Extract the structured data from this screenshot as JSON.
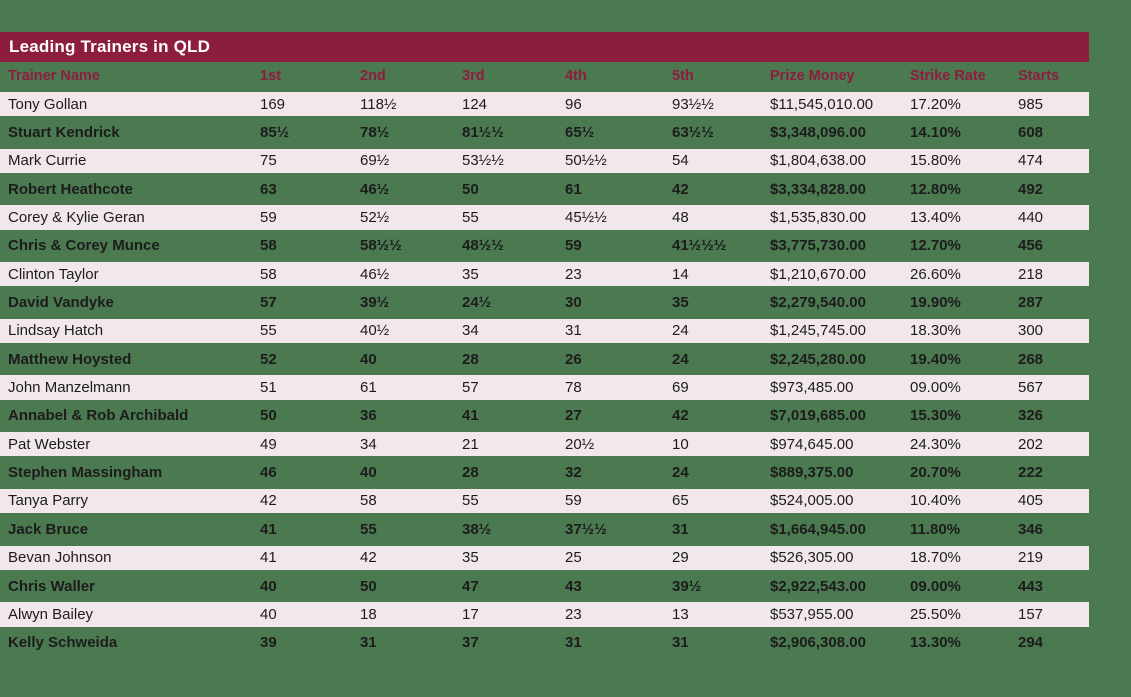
{
  "title": "Leading Trainers in QLD",
  "colors": {
    "background_green": "#4b7950",
    "title_bar_maroon": "#8d1d3f",
    "row_pink": "#f2e7ea",
    "header_text": "#8d1d3f",
    "row_text_dark": "#1c1c1c",
    "title_text": "#ffffff"
  },
  "chart_data": {
    "type": "table",
    "title": "Leading Trainers in QLD",
    "columns": [
      "Trainer Name",
      "1st",
      "2nd",
      "3rd",
      "4th",
      "5th",
      "Prize Money",
      "Strike Rate",
      "Starts"
    ],
    "column_keys": [
      "trainer-name",
      "first",
      "second",
      "third",
      "fourth",
      "fifth",
      "prize-money",
      "strike-rate",
      "starts"
    ],
    "rows": [
      [
        "Tony Gollan",
        "169",
        "118½",
        "124",
        "96",
        "93½½",
        "$11,545,010.00",
        "17.20%",
        "985"
      ],
      [
        "Stuart Kendrick",
        "85½",
        "78½",
        "81½½",
        "65½",
        "63½½",
        "$3,348,096.00",
        "14.10%",
        "608"
      ],
      [
        "Mark Currie",
        "75",
        "69½",
        "53½½",
        "50½½",
        "54",
        "$1,804,638.00",
        "15.80%",
        "474"
      ],
      [
        "Robert Heathcote",
        "63",
        "46½",
        "50",
        "61",
        "42",
        "$3,334,828.00",
        "12.80%",
        "492"
      ],
      [
        "Corey & Kylie Geran",
        "59",
        "52½",
        "55",
        "45½½",
        "48",
        "$1,535,830.00",
        "13.40%",
        "440"
      ],
      [
        "Chris & Corey Munce",
        "58",
        "58½½",
        "48½½",
        "59",
        "41½½½",
        "$3,775,730.00",
        "12.70%",
        "456"
      ],
      [
        "Clinton Taylor",
        "58",
        "46½",
        "35",
        "23",
        "14",
        "$1,210,670.00",
        "26.60%",
        "218"
      ],
      [
        "David Vandyke",
        "57",
        "39½",
        "24½",
        "30",
        "35",
        "$2,279,540.00",
        "19.90%",
        "287"
      ],
      [
        "Lindsay Hatch",
        "55",
        "40½",
        "34",
        "31",
        "24",
        "$1,245,745.00",
        "18.30%",
        "300"
      ],
      [
        "Matthew Hoysted",
        "52",
        "40",
        "28",
        "26",
        "24",
        "$2,245,280.00",
        "19.40%",
        "268"
      ],
      [
        "John Manzelmann",
        "51",
        "61",
        "57",
        "78",
        "69",
        "$973,485.00",
        "09.00%",
        "567"
      ],
      [
        "Annabel & Rob Archibald",
        "50",
        "36",
        "41",
        "27",
        "42",
        "$7,019,685.00",
        "15.30%",
        "326"
      ],
      [
        "Pat Webster",
        "49",
        "34",
        "21",
        "20½",
        "10",
        "$974,645.00",
        "24.30%",
        "202"
      ],
      [
        "Stephen Massingham",
        "46",
        "40",
        "28",
        "32",
        "24",
        "$889,375.00",
        "20.70%",
        "222"
      ],
      [
        "Tanya Parry",
        "42",
        "58",
        "55",
        "59",
        "65",
        "$524,005.00",
        "10.40%",
        "405"
      ],
      [
        "Jack Bruce",
        "41",
        "55",
        "38½",
        "37½½",
        "31",
        "$1,664,945.00",
        "11.80%",
        "346"
      ],
      [
        "Bevan Johnson",
        "41",
        "42",
        "35",
        "25",
        "29",
        "$526,305.00",
        "18.70%",
        "219"
      ],
      [
        "Chris Waller",
        "40",
        "50",
        "47",
        "43",
        "39½",
        "$2,922,543.00",
        "09.00%",
        "443"
      ],
      [
        "Alwyn Bailey",
        "40",
        "18",
        "17",
        "23",
        "13",
        "$537,955.00",
        "25.50%",
        "157"
      ],
      [
        "Kelly Schweida",
        "39",
        "31",
        "37",
        "31",
        "31",
        "$2,906,308.00",
        "13.30%",
        "294"
      ]
    ]
  }
}
